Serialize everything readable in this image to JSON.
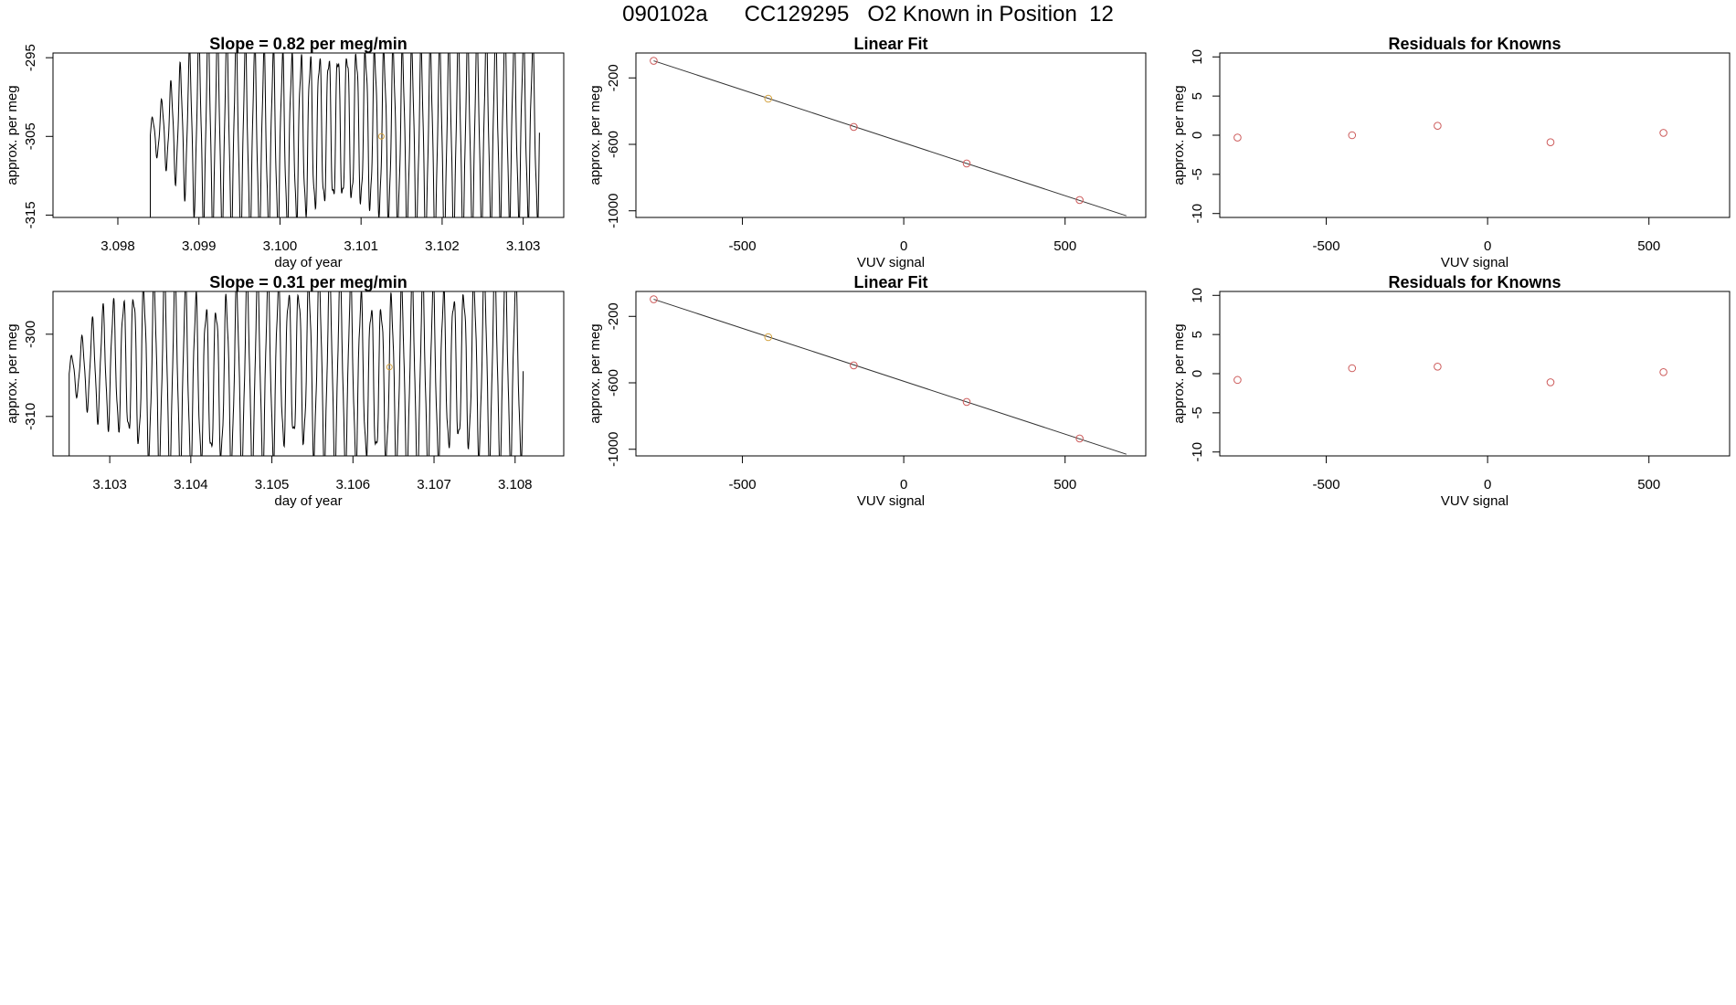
{
  "figure": {
    "title": "090102a      CC129295   O2 Known in Position  12",
    "colors": {
      "axis": "#000000",
      "trace": "#000000",
      "point": "#CD5C5C",
      "point_alt": "#D2A03C",
      "line": "#333333"
    }
  },
  "chart_data": [
    {
      "id": "trace-1",
      "type": "line",
      "title": "Slope =  0.82  per meg/min",
      "xlabel": "day of year",
      "ylabel": "approx. per meg",
      "xlim": [
        3.0972,
        3.1035
      ],
      "ylim": [
        -315.3,
        -294.4
      ],
      "xticks": [
        "3.098",
        "3.099",
        "3.100",
        "3.101",
        "3.102",
        "3.103"
      ],
      "yticks": [
        "-295",
        "-305",
        "-315"
      ],
      "series": [
        {
          "name": "measurement",
          "x_start": 3.0973,
          "x_end": 3.1032,
          "signal_start": 3.0984,
          "cycles": 42,
          "y_low": -315.3,
          "y_high": -294.4
        }
      ],
      "marker": {
        "x": 3.10125,
        "y": -305
      }
    },
    {
      "id": "fit-1",
      "type": "scatter",
      "title": "Linear Fit",
      "xlabel": "VUV signal",
      "ylabel": "approx. per meg",
      "xlim": [
        -830,
        750
      ],
      "ylim": [
        -1040,
        -50
      ],
      "xticks": [
        "-500",
        "0",
        "500"
      ],
      "yticks": [
        "-200",
        "-600",
        "-1000"
      ],
      "x": [
        -775,
        -420,
        -155,
        195,
        545
      ],
      "y": [
        -97,
        -325,
        -495,
        -715,
        -935
      ],
      "fit_line": {
        "x": [
          -775,
          690
        ],
        "y": [
          -97,
          -1030
        ]
      }
    },
    {
      "id": "resid-1",
      "type": "scatter",
      "title": "Residuals for Knowns",
      "xlabel": "VUV signal",
      "ylabel": "approx. per meg",
      "xlim": [
        -830,
        750
      ],
      "ylim": [
        -10.5,
        10.5
      ],
      "xticks": [
        "-500",
        "0",
        "500"
      ],
      "yticks": [
        "10",
        "5",
        "0",
        "-5",
        "-10"
      ],
      "x": [
        -775,
        -420,
        -155,
        195,
        545
      ],
      "y": [
        -0.3,
        0.0,
        1.2,
        -0.9,
        0.3
      ]
    },
    {
      "id": "trace-2",
      "type": "line",
      "title": "Slope =  0.31  per meg/min",
      "xlabel": "day of year",
      "ylabel": "approx. per meg",
      "xlim": [
        3.1023,
        3.1086
      ],
      "ylim": [
        -314.8,
        -294.8
      ],
      "xticks": [
        "3.103",
        "3.104",
        "3.105",
        "3.106",
        "3.107",
        "3.108"
      ],
      "yticks": [
        "-300",
        "-310"
      ],
      "series": [
        {
          "name": "measurement",
          "x_start": 3.1025,
          "x_end": 3.1081,
          "signal_start": 3.1025,
          "cycles": 44,
          "y_low": -314.8,
          "y_high": -294.8
        }
      ],
      "marker": {
        "x": 3.10645,
        "y": -304
      }
    },
    {
      "id": "fit-2",
      "type": "scatter",
      "title": "Linear Fit",
      "xlabel": "VUV signal",
      "ylabel": "approx. per meg",
      "xlim": [
        -830,
        750
      ],
      "ylim": [
        -1040,
        -50
      ],
      "xticks": [
        "-500",
        "0",
        "500"
      ],
      "yticks": [
        "-200",
        "-600",
        "-1000"
      ],
      "x": [
        -775,
        -420,
        -155,
        195,
        545
      ],
      "y": [
        -97,
        -325,
        -495,
        -715,
        -935
      ],
      "fit_line": {
        "x": [
          -775,
          690
        ],
        "y": [
          -97,
          -1030
        ]
      }
    },
    {
      "id": "resid-2",
      "type": "scatter",
      "title": "Residuals for Knowns",
      "xlabel": "VUV signal",
      "ylabel": "approx. per meg",
      "xlim": [
        -830,
        750
      ],
      "ylim": [
        -10.5,
        10.5
      ],
      "xticks": [
        "-500",
        "0",
        "500"
      ],
      "yticks": [
        "10",
        "5",
        "0",
        "-5",
        "-10"
      ],
      "x": [
        -775,
        -420,
        -155,
        195,
        545
      ],
      "y": [
        -0.8,
        0.7,
        0.9,
        -1.1,
        0.2
      ]
    }
  ]
}
